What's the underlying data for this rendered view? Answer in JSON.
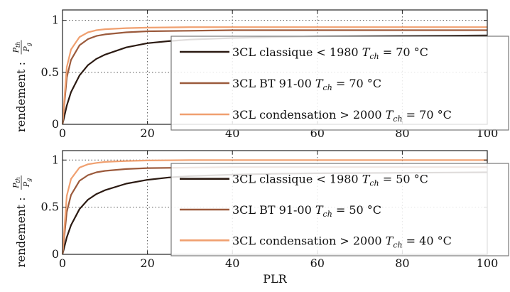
{
  "chart_data": [
    {
      "type": "line",
      "ylabel_prefix": "rendement :",
      "ylabel_num": "P",
      "ylabel_num_sub": "th",
      "ylabel_den": "P",
      "ylabel_den_sub": "g",
      "xlim": [
        0,
        100
      ],
      "ylim": [
        0,
        1.1
      ],
      "xticks": [
        "0",
        "20",
        "40",
        "60",
        "80",
        "100"
      ],
      "xtick_values": [
        0,
        20,
        40,
        60,
        80,
        100
      ],
      "yticks": [
        "0",
        "0.5",
        "1"
      ],
      "ytick_values": [
        0,
        0.5,
        1
      ],
      "grid": true,
      "legend_position": "right",
      "series": [
        {
          "name": "3CL classique < 1980 T_ch = 70 °C",
          "label_pre": "3CL classique < 1980 ",
          "label_var": "T",
          "label_sub": "ch",
          "label_post": " = 70 °C",
          "color": "#2b1a12",
          "x": [
            0,
            1,
            2,
            4,
            6,
            8,
            10,
            15,
            20,
            25,
            30,
            40,
            50,
            60,
            80,
            100
          ],
          "y": [
            0,
            0.18,
            0.31,
            0.47,
            0.57,
            0.63,
            0.67,
            0.74,
            0.78,
            0.8,
            0.815,
            0.83,
            0.84,
            0.845,
            0.85,
            0.855
          ]
        },
        {
          "name": "3CL BT 91-00 T_ch = 70 °C",
          "label_pre": "3CL BT 91-00 ",
          "label_var": "T",
          "label_sub": "ch",
          "label_post": " = 70 °C",
          "color": "#9b5a3c",
          "x": [
            0,
            1,
            2,
            4,
            6,
            8,
            10,
            15,
            20,
            30,
            40,
            60,
            80,
            100
          ],
          "y": [
            0,
            0.45,
            0.62,
            0.76,
            0.82,
            0.85,
            0.865,
            0.885,
            0.895,
            0.9,
            0.905,
            0.905,
            0.905,
            0.905
          ]
        },
        {
          "name": "3CL condensation > 2000 T_ch = 70 °C",
          "label_pre": "3CL condensation > 2000 ",
          "label_var": "T",
          "label_sub": "ch",
          "label_post": " = 70 °C",
          "color": "#f0a070",
          "x": [
            0,
            1,
            2,
            4,
            6,
            8,
            10,
            15,
            20,
            30,
            40,
            60,
            80,
            100
          ],
          "y": [
            0,
            0.55,
            0.72,
            0.84,
            0.885,
            0.905,
            0.915,
            0.925,
            0.93,
            0.935,
            0.935,
            0.935,
            0.935,
            0.935
          ]
        }
      ]
    },
    {
      "type": "line",
      "ylabel_prefix": "rendement :",
      "ylabel_num": "P",
      "ylabel_num_sub": "th",
      "ylabel_den": "P",
      "ylabel_den_sub": "g",
      "xlabel": "PLR",
      "xlim": [
        0,
        100
      ],
      "ylim": [
        0,
        1.1
      ],
      "xticks": [
        "0",
        "20",
        "40",
        "60",
        "80",
        "100"
      ],
      "xtick_values": [
        0,
        20,
        40,
        60,
        80,
        100
      ],
      "yticks": [
        "0",
        "0.5",
        "1"
      ],
      "ytick_values": [
        0,
        0.5,
        1
      ],
      "grid": true,
      "legend_position": "right",
      "series": [
        {
          "name": "3CL classique < 1980 T_ch = 50 °C",
          "label_pre": "3CL classique < 1980 ",
          "label_var": "T",
          "label_sub": "ch",
          "label_post": " = 50 °C",
          "color": "#2b1a12",
          "x": [
            0,
            1,
            2,
            4,
            6,
            8,
            10,
            15,
            20,
            25,
            30,
            40,
            50,
            60,
            80,
            100
          ],
          "y": [
            0,
            0.18,
            0.31,
            0.48,
            0.58,
            0.64,
            0.68,
            0.75,
            0.79,
            0.815,
            0.83,
            0.845,
            0.855,
            0.86,
            0.865,
            0.87
          ]
        },
        {
          "name": "3CL BT 91-00 T_ch = 50 °C",
          "label_pre": "3CL BT 91-00 ",
          "label_var": "T",
          "label_sub": "ch",
          "label_post": " = 50 °C",
          "color": "#9b5a3c",
          "x": [
            0,
            1,
            2,
            4,
            6,
            8,
            10,
            15,
            20,
            30,
            40,
            60,
            80,
            100
          ],
          "y": [
            0,
            0.45,
            0.63,
            0.78,
            0.84,
            0.87,
            0.885,
            0.905,
            0.915,
            0.92,
            0.925,
            0.925,
            0.925,
            0.925
          ]
        },
        {
          "name": "3CL condensation > 2000 T_ch = 40 °C",
          "label_pre": "3CL condensation > 2000 ",
          "label_var": "T",
          "label_sub": "ch",
          "label_post": " = 40 °C",
          "color": "#f0a070",
          "x": [
            0,
            1,
            2,
            4,
            6,
            8,
            10,
            15,
            20,
            30,
            40,
            60,
            80,
            100
          ],
          "y": [
            0,
            0.62,
            0.8,
            0.92,
            0.955,
            0.97,
            0.98,
            0.99,
            0.995,
            1.0,
            1.0,
            1.0,
            1.0,
            1.0
          ]
        }
      ]
    }
  ]
}
